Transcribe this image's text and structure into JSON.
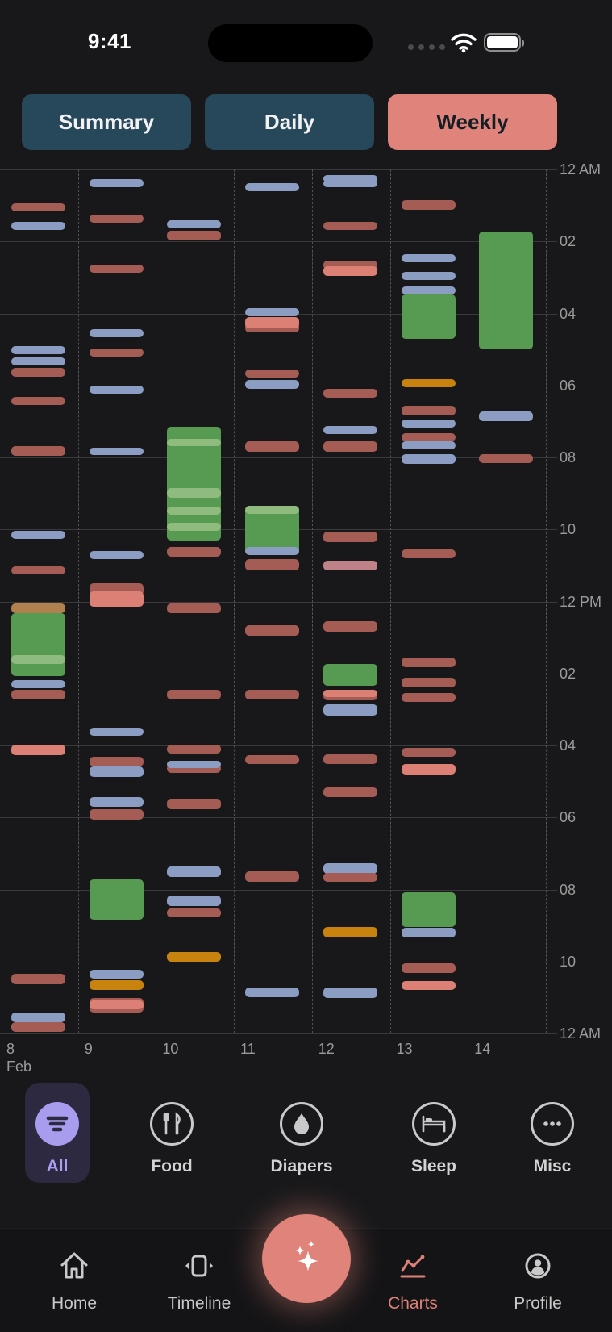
{
  "status_bar": {
    "time": "9:41"
  },
  "tabs": [
    {
      "label": "Summary",
      "active": false
    },
    {
      "label": "Daily",
      "active": false
    },
    {
      "label": "Weekly",
      "active": true
    }
  ],
  "chart_data": {
    "type": "weekly-event-timeline",
    "title": "Weekly activity chart, Feb 8-14, events plotted by time of day",
    "x_labels": [
      "8",
      "9",
      "10",
      "11",
      "12",
      "13",
      "14"
    ],
    "month_label": "Feb",
    "y_labels": [
      "12 AM",
      "02",
      "04",
      "06",
      "08",
      "10",
      "12 PM",
      "02",
      "04",
      "06",
      "08",
      "10",
      "12 AM"
    ],
    "y_range_hours": [
      0,
      24
    ],
    "grid": "on",
    "colors": {
      "blue": "#8b9dc3",
      "red": "#a55c55",
      "salmon": "#dc8075",
      "pink": "#bf8288",
      "green": "#579a52",
      "green_light": "#90bb7f",
      "orange": "#c8820e",
      "tan": "#b0804e"
    },
    "legend_semantics": {
      "blue": "sleep-short",
      "red": "food",
      "green": "sleep-block",
      "orange": "misc"
    },
    "events": [
      [
        0,
        0.94,
        1.17,
        "red"
      ],
      [
        0,
        1.46,
        1.68,
        "blue"
      ],
      [
        0,
        4.91,
        5.13,
        "blue"
      ],
      [
        0,
        5.22,
        5.44,
        "blue"
      ],
      [
        0,
        5.51,
        5.76,
        "red"
      ],
      [
        0,
        6.32,
        6.54,
        "red"
      ],
      [
        0,
        7.69,
        7.95,
        "red"
      ],
      [
        0,
        10.04,
        10.26,
        "blue"
      ],
      [
        0,
        11.02,
        11.25,
        "red"
      ],
      [
        0,
        12.05,
        12.33,
        "tan"
      ],
      [
        0,
        12.33,
        14.07,
        "green"
      ],
      [
        0,
        13.49,
        13.73,
        "green_light"
      ],
      [
        0,
        14.18,
        14.41,
        "blue"
      ],
      [
        0,
        14.45,
        14.72,
        "red"
      ],
      [
        0,
        15.98,
        16.27,
        "salmon"
      ],
      [
        0,
        22.34,
        22.63,
        "red"
      ],
      [
        0,
        23.41,
        23.68,
        "blue"
      ],
      [
        0,
        23.68,
        23.95,
        "red"
      ],
      [
        1,
        0.27,
        0.49,
        "blue"
      ],
      [
        1,
        1.25,
        1.48,
        "red"
      ],
      [
        1,
        2.64,
        2.87,
        "red"
      ],
      [
        1,
        4.44,
        4.66,
        "blue"
      ],
      [
        1,
        4.97,
        5.2,
        "red"
      ],
      [
        1,
        6.0,
        6.23,
        "blue"
      ],
      [
        1,
        7.73,
        7.91,
        "blue"
      ],
      [
        1,
        10.6,
        10.82,
        "blue"
      ],
      [
        1,
        11.49,
        11.83,
        "red"
      ],
      [
        1,
        11.72,
        12.15,
        "salmon"
      ],
      [
        1,
        15.51,
        15.73,
        "blue"
      ],
      [
        1,
        16.31,
        16.58,
        "red"
      ],
      [
        1,
        16.58,
        16.87,
        "blue"
      ],
      [
        1,
        17.43,
        17.7,
        "blue"
      ],
      [
        1,
        17.77,
        18.06,
        "red"
      ],
      [
        1,
        19.72,
        20.84,
        "green"
      ],
      [
        1,
        22.23,
        22.47,
        "blue"
      ],
      [
        1,
        22.52,
        22.79,
        "orange"
      ],
      [
        1,
        23.01,
        23.42,
        "red"
      ],
      [
        1,
        23.08,
        23.32,
        "salmon"
      ],
      [
        2,
        1.41,
        1.64,
        "blue"
      ],
      [
        2,
        1.7,
        1.97,
        "red"
      ],
      [
        2,
        7.15,
        10.31,
        "green"
      ],
      [
        2,
        7.48,
        7.69,
        "green_light"
      ],
      [
        2,
        8.85,
        9.12,
        "green_light"
      ],
      [
        2,
        9.37,
        9.59,
        "green_light"
      ],
      [
        2,
        9.81,
        10.04,
        "green_light"
      ],
      [
        2,
        10.49,
        10.76,
        "red"
      ],
      [
        2,
        12.05,
        12.32,
        "red"
      ],
      [
        2,
        14.45,
        14.72,
        "red"
      ],
      [
        2,
        15.98,
        16.22,
        "red"
      ],
      [
        2,
        16.51,
        16.76,
        "red"
      ],
      [
        2,
        16.42,
        16.63,
        "blue"
      ],
      [
        2,
        17.48,
        17.77,
        "red"
      ],
      [
        2,
        19.36,
        19.65,
        "blue"
      ],
      [
        2,
        20.17,
        20.46,
        "blue"
      ],
      [
        2,
        20.52,
        20.77,
        "red"
      ],
      [
        2,
        21.73,
        22.0,
        "orange"
      ],
      [
        3,
        0.38,
        0.6,
        "blue"
      ],
      [
        3,
        3.85,
        4.08,
        "blue"
      ],
      [
        3,
        4.25,
        4.53,
        "red"
      ],
      [
        3,
        4.1,
        4.42,
        "salmon"
      ],
      [
        3,
        5.56,
        5.78,
        "red"
      ],
      [
        3,
        5.85,
        6.09,
        "blue"
      ],
      [
        3,
        7.55,
        7.84,
        "red"
      ],
      [
        3,
        9.34,
        10.69,
        "green"
      ],
      [
        3,
        9.34,
        9.57,
        "green_light"
      ],
      [
        3,
        10.49,
        10.71,
        "blue"
      ],
      [
        3,
        10.82,
        11.13,
        "red"
      ],
      [
        3,
        12.66,
        12.95,
        "red"
      ],
      [
        3,
        14.45,
        14.72,
        "red"
      ],
      [
        3,
        16.27,
        16.51,
        "red"
      ],
      [
        3,
        19.49,
        19.79,
        "red"
      ],
      [
        3,
        22.72,
        22.99,
        "blue"
      ],
      [
        4,
        0.16,
        0.33,
        "blue"
      ],
      [
        4,
        0.29,
        0.45,
        "blue"
      ],
      [
        4,
        1.46,
        1.68,
        "red"
      ],
      [
        4,
        2.53,
        2.78,
        "red"
      ],
      [
        4,
        2.69,
        2.96,
        "salmon"
      ],
      [
        4,
        6.09,
        6.34,
        "red"
      ],
      [
        4,
        7.12,
        7.35,
        "blue"
      ],
      [
        4,
        7.55,
        7.84,
        "red"
      ],
      [
        4,
        10.06,
        10.35,
        "red"
      ],
      [
        4,
        10.87,
        11.13,
        "pink"
      ],
      [
        4,
        12.55,
        12.84,
        "red"
      ],
      [
        4,
        13.74,
        14.34,
        "green"
      ],
      [
        4,
        14.45,
        14.74,
        "red"
      ],
      [
        4,
        14.45,
        14.63,
        "salmon"
      ],
      [
        4,
        14.86,
        15.17,
        "blue"
      ],
      [
        4,
        16.24,
        16.51,
        "red"
      ],
      [
        4,
        17.16,
        17.43,
        "red"
      ],
      [
        4,
        19.27,
        19.56,
        "blue"
      ],
      [
        4,
        19.54,
        19.79,
        "red"
      ],
      [
        4,
        21.04,
        21.33,
        "orange"
      ],
      [
        4,
        22.72,
        23.01,
        "blue"
      ],
      [
        5,
        0.85,
        1.12,
        "red"
      ],
      [
        5,
        2.35,
        2.58,
        "blue"
      ],
      [
        5,
        2.85,
        3.07,
        "blue"
      ],
      [
        5,
        3.25,
        3.47,
        "blue"
      ],
      [
        5,
        3.47,
        4.71,
        "green"
      ],
      [
        5,
        5.83,
        6.05,
        "orange"
      ],
      [
        5,
        6.57,
        6.83,
        "red"
      ],
      [
        5,
        6.95,
        7.17,
        "blue"
      ],
      [
        5,
        7.33,
        7.55,
        "red"
      ],
      [
        5,
        7.55,
        7.77,
        "blue"
      ],
      [
        5,
        7.91,
        8.18,
        "blue"
      ],
      [
        5,
        10.55,
        10.8,
        "red"
      ],
      [
        5,
        13.55,
        13.82,
        "red"
      ],
      [
        5,
        14.11,
        14.38,
        "red"
      ],
      [
        5,
        14.54,
        14.79,
        "red"
      ],
      [
        5,
        16.07,
        16.31,
        "red"
      ],
      [
        5,
        16.51,
        16.81,
        "salmon"
      ],
      [
        5,
        20.08,
        21.04,
        "green"
      ],
      [
        5,
        21.06,
        21.33,
        "blue"
      ],
      [
        5,
        22.05,
        22.32,
        "red"
      ],
      [
        5,
        22.54,
        22.79,
        "salmon"
      ],
      [
        6,
        1.73,
        5.0,
        "green"
      ],
      [
        6,
        6.72,
        6.99,
        "blue"
      ],
      [
        6,
        7.91,
        8.16,
        "red"
      ]
    ]
  },
  "filters": {
    "accent_purple": "#a89cef",
    "items": [
      {
        "label": "All",
        "icon": "filter-icon",
        "active": true
      },
      {
        "label": "Food",
        "icon": "fork-knife-icon",
        "active": false
      },
      {
        "label": "Diapers",
        "icon": "droplet-icon",
        "active": false
      },
      {
        "label": "Sleep",
        "icon": "bed-icon",
        "active": false
      },
      {
        "label": "Misc",
        "icon": "ellipsis-icon",
        "active": false
      }
    ]
  },
  "bottom_nav": {
    "accent_salmon": "#dc8176",
    "items": [
      {
        "label": "Home",
        "icon": "home-icon",
        "active": false
      },
      {
        "label": "Timeline",
        "icon": "timeline-icon",
        "active": false
      },
      {
        "label": "Charts",
        "icon": "charts-icon",
        "active": true
      },
      {
        "label": "Profile",
        "icon": "profile-icon",
        "active": false
      }
    ],
    "fab": {
      "icon": "sparkles-icon",
      "color": "#e0837a"
    }
  }
}
